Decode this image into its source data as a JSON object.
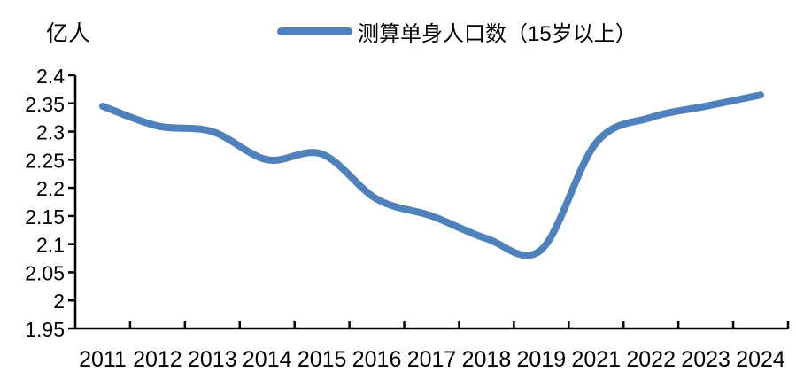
{
  "chart": {
    "unit_label": "亿人",
    "legend_label": "测算单身人口数（15岁以上）"
  },
  "chart_data": {
    "type": "line",
    "title": "",
    "unit_label": "亿人",
    "legend_entries": [
      "测算单身人口数（15岁以上）"
    ],
    "legend_position": "top",
    "categories": [
      "2011",
      "2012",
      "2013",
      "2014",
      "2015",
      "2016",
      "2017",
      "2018",
      "2019",
      "2021",
      "2022",
      "2023",
      "2024"
    ],
    "series": [
      {
        "name": "测算单身人口数（15岁以上）",
        "values": [
          2.345,
          2.31,
          2.3,
          2.25,
          2.26,
          2.18,
          2.15,
          2.11,
          2.09,
          2.28,
          2.325,
          2.345,
          2.365
        ]
      }
    ],
    "ylim": [
      1.95,
      2.4
    ],
    "y_tick_values": [
      2.4,
      2.35,
      2.3,
      2.25,
      2.2,
      2.15,
      2.1,
      2.05,
      2.0,
      1.95
    ],
    "y_tick_labels": [
      "2.4",
      "2.35",
      "2.3",
      "2.25",
      "2.2",
      "2.15",
      "2.1",
      "2.05",
      "2",
      "1.95"
    ],
    "grid": false,
    "smoothed": true,
    "line_color": "#4f81bd",
    "axis_color": "#000000",
    "text_color": "#000000"
  }
}
